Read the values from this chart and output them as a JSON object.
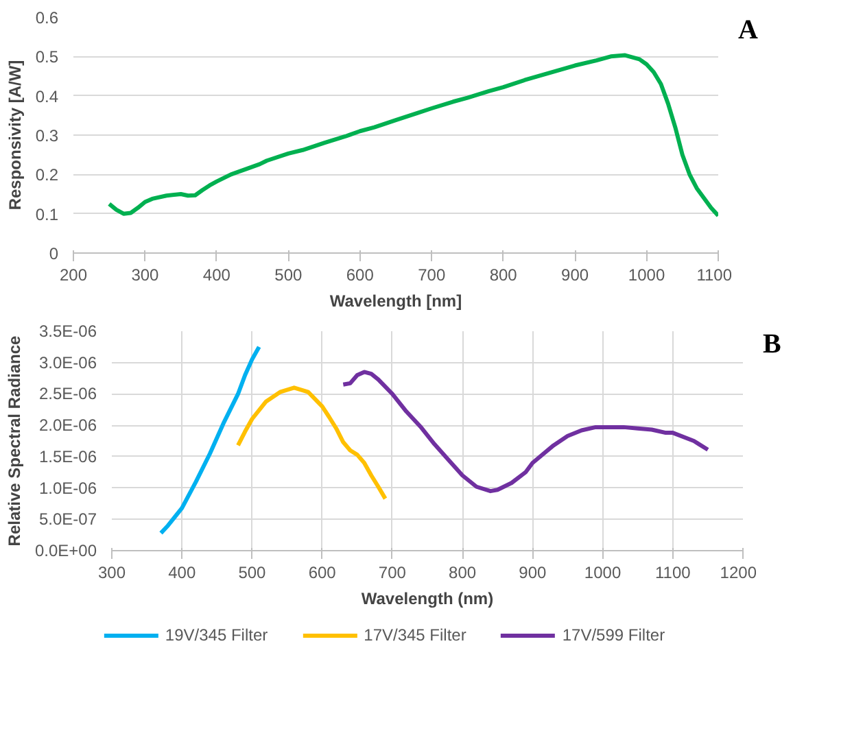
{
  "chart_data": [
    {
      "type": "line",
      "xlabel": "Wavelength [nm]",
      "ylabel": "Responsivity [A/W]",
      "annotations": [
        "A"
      ],
      "grid": "y",
      "xlim": [
        200,
        1100
      ],
      "ylim": [
        0,
        0.6
      ],
      "xticks": [
        200,
        300,
        400,
        500,
        600,
        700,
        800,
        900,
        1000,
        1100
      ],
      "yticks": [
        0,
        0.1,
        0.2,
        0.3,
        0.4,
        0.5,
        0.6
      ],
      "series": [
        {
          "color": "#00b050",
          "x": [
            250,
            260,
            270,
            280,
            290,
            300,
            310,
            330,
            350,
            360,
            370,
            380,
            390,
            400,
            420,
            440,
            460,
            470,
            500,
            520,
            550,
            580,
            600,
            620,
            650,
            680,
            700,
            730,
            750,
            780,
            800,
            830,
            860,
            900,
            930,
            950,
            970,
            990,
            1000,
            1010,
            1020,
            1030,
            1040,
            1050,
            1060,
            1070,
            1080,
            1090,
            1100
          ],
          "values": [
            0.125,
            0.11,
            0.1,
            0.102,
            0.115,
            0.13,
            0.138,
            0.146,
            0.15,
            0.146,
            0.147,
            0.16,
            0.172,
            0.182,
            0.2,
            0.213,
            0.226,
            0.235,
            0.253,
            0.262,
            0.28,
            0.297,
            0.31,
            0.32,
            0.338,
            0.356,
            0.368,
            0.385,
            0.395,
            0.412,
            0.422,
            0.44,
            0.456,
            0.477,
            0.49,
            0.5,
            0.503,
            0.493,
            0.48,
            0.46,
            0.43,
            0.38,
            0.32,
            0.25,
            0.2,
            0.165,
            0.14,
            0.115,
            0.095
          ]
        }
      ]
    },
    {
      "type": "line",
      "xlabel": "Wavelength (nm)",
      "ylabel": "Relative Spectral Radiance",
      "annotations": [
        "B"
      ],
      "grid": true,
      "legend": "bottom",
      "xlim": [
        300,
        1200
      ],
      "ylim": [
        0,
        3.5e-06
      ],
      "xticks": [
        300,
        400,
        500,
        600,
        700,
        800,
        900,
        1000,
        1100,
        1200
      ],
      "yticks": [
        {
          "value": 0,
          "label": "0.0E+00"
        },
        {
          "value": 5e-07,
          "label": "5.0E-07"
        },
        {
          "value": 1e-06,
          "label": "1.0E-06"
        },
        {
          "value": 1.5e-06,
          "label": "1.5E-06"
        },
        {
          "value": 2e-06,
          "label": "2.0E-06"
        },
        {
          "value": 2.5e-06,
          "label": "2.5E-06"
        },
        {
          "value": 3e-06,
          "label": "3.0E-06"
        },
        {
          "value": 3.5e-06,
          "label": "3.5E-06"
        }
      ],
      "series": [
        {
          "name": "19V/345 Filter",
          "color": "#00b0f0",
          "x": [
            370,
            380,
            400,
            420,
            440,
            460,
            480,
            490,
            500,
            510
          ],
          "values": [
            2.8e-07,
            4e-07,
            6.8e-07,
            1.1e-06,
            1.55e-06,
            2.05e-06,
            2.5e-06,
            2.8e-06,
            3.05e-06,
            3.25e-06
          ]
        },
        {
          "name": "17V/345 Filter",
          "color": "#ffc000",
          "x": [
            480,
            490,
            500,
            520,
            540,
            560,
            580,
            600,
            610,
            620,
            630,
            640,
            650,
            660,
            670,
            680,
            690
          ],
          "values": [
            1.68e-06,
            1.9e-06,
            2.1e-06,
            2.38e-06,
            2.53e-06,
            2.6e-06,
            2.53e-06,
            2.3e-06,
            2.13e-06,
            1.95e-06,
            1.73e-06,
            1.6e-06,
            1.53e-06,
            1.4e-06,
            1.2e-06,
            1.02e-06,
            8.3e-07
          ]
        },
        {
          "name": "17V/599 Filter",
          "color": "#7030a0",
          "x": [
            630,
            640,
            650,
            660,
            670,
            680,
            700,
            720,
            740,
            760,
            780,
            800,
            820,
            840,
            850,
            870,
            890,
            900,
            930,
            950,
            970,
            990,
            1030,
            1050,
            1070,
            1090,
            1100,
            1130,
            1150
          ],
          "values": [
            2.65e-06,
            2.67e-06,
            2.8e-06,
            2.85e-06,
            2.82e-06,
            2.73e-06,
            2.5e-06,
            2.22e-06,
            1.98e-06,
            1.7e-06,
            1.45e-06,
            1.2e-06,
            1.02e-06,
            9.5e-07,
            9.7e-07,
            1.08e-06,
            1.25e-06,
            1.4e-06,
            1.68e-06,
            1.83e-06,
            1.92e-06,
            1.97e-06,
            1.97e-06,
            1.95e-06,
            1.93e-06,
            1.88e-06,
            1.88e-06,
            1.75e-06,
            1.61e-06
          ]
        }
      ]
    }
  ]
}
